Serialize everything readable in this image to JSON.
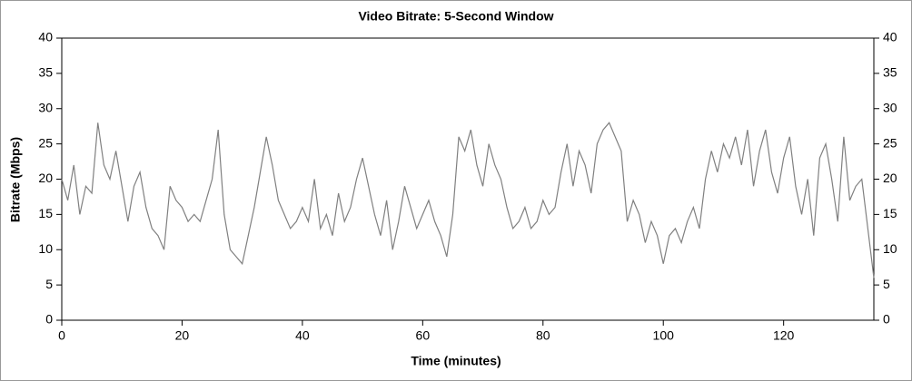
{
  "chart_data": {
    "type": "line",
    "title": "Video Bitrate: 5-Second Window",
    "xlabel": "Time (minutes)",
    "ylabel": "Bitrate (Mbps)",
    "x": [
      0,
      1,
      2,
      3,
      4,
      5,
      6,
      7,
      8,
      9,
      10,
      11,
      12,
      13,
      14,
      15,
      16,
      17,
      18,
      19,
      20,
      21,
      22,
      23,
      24,
      25,
      26,
      27,
      28,
      29,
      30,
      31,
      32,
      33,
      34,
      35,
      36,
      37,
      38,
      39,
      40,
      41,
      42,
      43,
      44,
      45,
      46,
      47,
      48,
      49,
      50,
      51,
      52,
      53,
      54,
      55,
      56,
      57,
      58,
      59,
      60,
      61,
      62,
      63,
      64,
      65,
      66,
      67,
      68,
      69,
      70,
      71,
      72,
      73,
      74,
      75,
      76,
      77,
      78,
      79,
      80,
      81,
      82,
      83,
      84,
      85,
      86,
      87,
      88,
      89,
      90,
      91,
      92,
      93,
      94,
      95,
      96,
      97,
      98,
      99,
      100,
      101,
      102,
      103,
      104,
      105,
      106,
      107,
      108,
      109,
      110,
      111,
      112,
      113,
      114,
      115,
      116,
      117,
      118,
      119,
      120,
      121,
      122,
      123,
      124,
      125,
      126,
      127,
      128,
      129,
      130,
      131,
      132,
      133,
      134,
      135
    ],
    "series": [
      {
        "name": "Bitrate",
        "color": "#808080",
        "values": [
          20,
          17,
          22,
          15,
          19,
          18,
          28,
          22,
          20,
          24,
          19,
          14,
          19,
          21,
          16,
          13,
          12,
          10,
          19,
          17,
          16,
          14,
          15,
          14,
          17,
          20,
          27,
          15,
          10,
          9,
          8,
          12,
          16,
          21,
          26,
          22,
          17,
          15,
          13,
          14,
          16,
          14,
          20,
          13,
          15,
          12,
          18,
          14,
          16,
          20,
          23,
          19,
          15,
          12,
          17,
          10,
          14,
          19,
          16,
          13,
          15,
          17,
          14,
          12,
          9,
          15,
          26,
          24,
          27,
          22,
          19,
          25,
          22,
          20,
          16,
          13,
          14,
          16,
          13,
          14,
          17,
          15,
          16,
          21,
          25,
          19,
          24,
          22,
          18,
          25,
          27,
          28,
          26,
          24,
          14,
          17,
          15,
          11,
          14,
          12,
          8,
          12,
          13,
          11,
          14,
          16,
          13,
          20,
          24,
          21,
          25,
          23,
          26,
          22,
          27,
          19,
          24,
          27,
          21,
          18,
          23,
          26,
          19,
          15,
          20,
          12,
          23,
          25,
          20,
          14,
          26,
          17,
          19,
          20,
          13,
          6
        ]
      }
    ],
    "xlim": [
      0,
      135
    ],
    "xticks": [
      0,
      20,
      40,
      60,
      80,
      100,
      120
    ],
    "ylim": [
      0,
      40
    ],
    "yticks": [
      0,
      5,
      10,
      15,
      20,
      25,
      30,
      35,
      40
    ],
    "y2lim": [
      0,
      40
    ],
    "y2ticks": [
      0,
      5,
      10,
      15,
      20,
      25,
      30,
      35,
      40
    ]
  }
}
